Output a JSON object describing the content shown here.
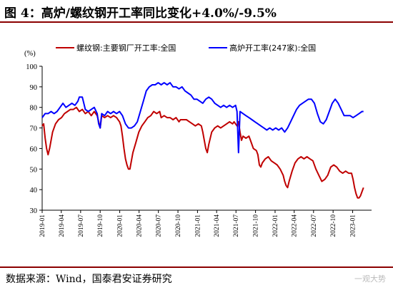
{
  "header": {
    "title": "图 4：高炉/螺纹钢开工率同比变化+4.0%/-9.5%"
  },
  "footer": {
    "source": "数据来源：Wind，国泰君安证券研究",
    "watermark": "一观大势"
  },
  "colors": {
    "red_series": "#c00000",
    "blue_series": "#0000ff",
    "rule": "#8b0000"
  },
  "chart_data": {
    "type": "line",
    "title": "图 4：高炉/螺纹钢开工率同比变化+4.0%/-9.5%",
    "ylabel": "(%)",
    "ylim": [
      30,
      100
    ],
    "yticks": [
      "30",
      "40",
      "50",
      "60",
      "70",
      "80",
      "90",
      "100"
    ],
    "xlim": [
      "2019-01-01",
      "2023-03-31"
    ],
    "xticks": [
      "2019-01",
      "2019-04",
      "2019-07",
      "2019-10",
      "2020-01",
      "2020-04",
      "2020-07",
      "2020-10",
      "2021-01",
      "2021-04",
      "2021-07",
      "2021-10",
      "2022-01",
      "2022-04",
      "2022-07",
      "2022-10",
      "2023-01"
    ],
    "legend_position": "top",
    "grid": false,
    "series": [
      {
        "name": "螺纹钢:主要钢厂开工率:全国",
        "color": "#c00000",
        "points": [
          [
            "2019-01-01",
            71
          ],
          [
            "2019-01-08",
            72
          ],
          [
            "2019-01-15",
            65
          ],
          [
            "2019-01-22",
            60
          ],
          [
            "2019-01-29",
            57
          ],
          [
            "2019-02-05",
            60
          ],
          [
            "2019-02-19",
            68
          ],
          [
            "2019-03-05",
            72
          ],
          [
            "2019-03-19",
            74
          ],
          [
            "2019-04-02",
            75
          ],
          [
            "2019-04-16",
            77
          ],
          [
            "2019-04-30",
            78
          ],
          [
            "2019-05-14",
            79
          ],
          [
            "2019-05-28",
            79
          ],
          [
            "2019-06-11",
            80
          ],
          [
            "2019-06-25",
            78
          ],
          [
            "2019-07-09",
            79
          ],
          [
            "2019-07-23",
            77
          ],
          [
            "2019-08-06",
            78
          ],
          [
            "2019-08-20",
            76
          ],
          [
            "2019-09-03",
            78
          ],
          [
            "2019-09-17",
            76
          ],
          [
            "2019-09-24",
            73
          ],
          [
            "2019-10-01",
            70
          ],
          [
            "2019-10-08",
            76
          ],
          [
            "2019-10-22",
            75
          ],
          [
            "2019-11-05",
            76
          ],
          [
            "2019-11-19",
            75
          ],
          [
            "2019-12-03",
            76
          ],
          [
            "2019-12-17",
            75
          ],
          [
            "2019-12-31",
            73
          ],
          [
            "2020-01-07",
            71
          ],
          [
            "2020-01-14",
            66
          ],
          [
            "2020-01-21",
            60
          ],
          [
            "2020-01-28",
            55
          ],
          [
            "2020-02-04",
            52
          ],
          [
            "2020-02-11",
            50
          ],
          [
            "2020-02-18",
            50
          ],
          [
            "2020-02-25",
            54
          ],
          [
            "2020-03-03",
            58
          ],
          [
            "2020-03-17",
            63
          ],
          [
            "2020-03-31",
            68
          ],
          [
            "2020-04-14",
            71
          ],
          [
            "2020-04-28",
            73
          ],
          [
            "2020-05-12",
            75
          ],
          [
            "2020-05-26",
            76
          ],
          [
            "2020-06-09",
            78
          ],
          [
            "2020-06-23",
            77
          ],
          [
            "2020-07-07",
            78
          ],
          [
            "2020-07-14",
            75
          ],
          [
            "2020-07-28",
            76
          ],
          [
            "2020-08-11",
            75
          ],
          [
            "2020-08-25",
            75
          ],
          [
            "2020-09-08",
            74
          ],
          [
            "2020-09-22",
            75
          ],
          [
            "2020-10-06",
            73
          ],
          [
            "2020-10-13",
            74
          ],
          [
            "2020-10-27",
            74
          ],
          [
            "2020-11-10",
            74
          ],
          [
            "2020-11-24",
            73
          ],
          [
            "2020-12-08",
            72
          ],
          [
            "2020-12-22",
            71
          ],
          [
            "2021-01-05",
            72
          ],
          [
            "2021-01-19",
            71
          ],
          [
            "2021-01-26",
            68
          ],
          [
            "2021-02-02",
            64
          ],
          [
            "2021-02-09",
            60
          ],
          [
            "2021-02-16",
            58
          ],
          [
            "2021-02-23",
            62
          ],
          [
            "2021-03-09",
            68
          ],
          [
            "2021-03-23",
            70
          ],
          [
            "2021-04-06",
            71
          ],
          [
            "2021-04-20",
            70
          ],
          [
            "2021-05-04",
            71
          ],
          [
            "2021-05-18",
            72
          ],
          [
            "2021-06-01",
            73
          ],
          [
            "2021-06-15",
            72
          ],
          [
            "2021-06-22",
            73
          ],
          [
            "2021-07-06",
            71
          ],
          [
            "2021-07-13",
            73
          ],
          [
            "2021-07-20",
            68
          ],
          [
            "2021-07-27",
            64
          ],
          [
            "2021-08-03",
            66
          ],
          [
            "2021-08-17",
            65
          ],
          [
            "2021-08-31",
            66
          ],
          [
            "2021-09-07",
            64
          ],
          [
            "2021-09-21",
            60
          ],
          [
            "2021-10-05",
            59
          ],
          [
            "2021-10-12",
            57
          ],
          [
            "2021-10-19",
            52
          ],
          [
            "2021-10-26",
            51
          ],
          [
            "2021-11-02",
            53
          ],
          [
            "2021-11-16",
            55
          ],
          [
            "2021-11-30",
            56
          ],
          [
            "2021-12-14",
            54
          ],
          [
            "2021-12-28",
            53
          ],
          [
            "2022-01-11",
            52
          ],
          [
            "2022-01-25",
            50
          ],
          [
            "2022-02-08",
            47
          ],
          [
            "2022-02-15",
            44
          ],
          [
            "2022-02-22",
            42
          ],
          [
            "2022-03-01",
            41
          ],
          [
            "2022-03-08",
            44
          ],
          [
            "2022-03-22",
            49
          ],
          [
            "2022-04-05",
            53
          ],
          [
            "2022-04-19",
            55
          ],
          [
            "2022-05-03",
            56
          ],
          [
            "2022-05-17",
            55
          ],
          [
            "2022-05-31",
            56
          ],
          [
            "2022-06-14",
            55
          ],
          [
            "2022-06-28",
            54
          ],
          [
            "2022-07-12",
            50
          ],
          [
            "2022-07-26",
            47
          ],
          [
            "2022-08-09",
            44
          ],
          [
            "2022-08-23",
            45
          ],
          [
            "2022-09-06",
            47
          ],
          [
            "2022-09-20",
            51
          ],
          [
            "2022-10-04",
            52
          ],
          [
            "2022-10-18",
            51
          ],
          [
            "2022-11-01",
            49
          ],
          [
            "2022-11-15",
            48
          ],
          [
            "2022-11-29",
            49
          ],
          [
            "2022-12-13",
            48
          ],
          [
            "2022-12-27",
            48
          ],
          [
            "2023-01-03",
            45
          ],
          [
            "2023-01-10",
            41
          ],
          [
            "2023-01-17",
            38
          ],
          [
            "2023-01-24",
            36
          ],
          [
            "2023-01-31",
            36
          ],
          [
            "2023-02-07",
            37
          ],
          [
            "2023-02-14",
            39
          ],
          [
            "2023-02-21",
            41
          ]
        ]
      },
      {
        "name": "高炉开工率(247家):全国",
        "color": "#0000ff",
        "points": [
          [
            "2019-01-01",
            75
          ],
          [
            "2019-01-15",
            77
          ],
          [
            "2019-01-29",
            77
          ],
          [
            "2019-02-12",
            78
          ],
          [
            "2019-02-26",
            77
          ],
          [
            "2019-03-12",
            78
          ],
          [
            "2019-03-26",
            80
          ],
          [
            "2019-04-09",
            82
          ],
          [
            "2019-04-23",
            80
          ],
          [
            "2019-05-07",
            81
          ],
          [
            "2019-05-21",
            82
          ],
          [
            "2019-06-04",
            81
          ],
          [
            "2019-06-18",
            83
          ],
          [
            "2019-06-25",
            85
          ],
          [
            "2019-07-09",
            85
          ],
          [
            "2019-07-16",
            82
          ],
          [
            "2019-07-23",
            79
          ],
          [
            "2019-08-06",
            78
          ],
          [
            "2019-08-20",
            79
          ],
          [
            "2019-09-03",
            80
          ],
          [
            "2019-09-17",
            77
          ],
          [
            "2019-09-24",
            72
          ],
          [
            "2019-10-01",
            70
          ],
          [
            "2019-10-08",
            77
          ],
          [
            "2019-10-22",
            76
          ],
          [
            "2019-11-05",
            78
          ],
          [
            "2019-11-19",
            77
          ],
          [
            "2019-12-03",
            78
          ],
          [
            "2019-12-17",
            77
          ],
          [
            "2019-12-31",
            78
          ],
          [
            "2020-01-14",
            76
          ],
          [
            "2020-01-28",
            72
          ],
          [
            "2020-02-11",
            70
          ],
          [
            "2020-02-25",
            70
          ],
          [
            "2020-03-10",
            71
          ],
          [
            "2020-03-24",
            73
          ],
          [
            "2020-04-07",
            78
          ],
          [
            "2020-04-21",
            83
          ],
          [
            "2020-05-05",
            88
          ],
          [
            "2020-05-19",
            90
          ],
          [
            "2020-06-02",
            91
          ],
          [
            "2020-06-16",
            91
          ],
          [
            "2020-06-30",
            92
          ],
          [
            "2020-07-14",
            91
          ],
          [
            "2020-07-28",
            92
          ],
          [
            "2020-08-11",
            91
          ],
          [
            "2020-08-25",
            92
          ],
          [
            "2020-09-08",
            90
          ],
          [
            "2020-09-22",
            90
          ],
          [
            "2020-10-06",
            89
          ],
          [
            "2020-10-20",
            90
          ],
          [
            "2020-11-03",
            88
          ],
          [
            "2020-11-17",
            87
          ],
          [
            "2020-12-01",
            86
          ],
          [
            "2020-12-15",
            84
          ],
          [
            "2020-12-29",
            84
          ],
          [
            "2021-01-12",
            83
          ],
          [
            "2021-01-26",
            82
          ],
          [
            "2021-02-09",
            84
          ],
          [
            "2021-02-23",
            85
          ],
          [
            "2021-03-09",
            84
          ],
          [
            "2021-03-23",
            82
          ],
          [
            "2021-04-06",
            81
          ],
          [
            "2021-04-20",
            80
          ],
          [
            "2021-05-04",
            81
          ],
          [
            "2021-05-18",
            80
          ],
          [
            "2021-06-01",
            81
          ],
          [
            "2021-06-15",
            80
          ],
          [
            "2021-06-29",
            81
          ],
          [
            "2021-07-06",
            78
          ],
          [
            "2021-07-13",
            58
          ],
          [
            "2021-07-20",
            78
          ],
          [
            "2021-08-03",
            77
          ],
          [
            "2021-08-17",
            76
          ],
          [
            "2021-08-31",
            75
          ],
          [
            "2021-09-14",
            74
          ],
          [
            "2021-09-28",
            73
          ],
          [
            "2021-10-12",
            72
          ],
          [
            "2021-10-26",
            71
          ],
          [
            "2021-11-09",
            70
          ],
          [
            "2021-11-23",
            69
          ],
          [
            "2021-12-07",
            70
          ],
          [
            "2021-12-21",
            69
          ],
          [
            "2022-01-04",
            70
          ],
          [
            "2022-01-18",
            69
          ],
          [
            "2022-02-01",
            70
          ],
          [
            "2022-02-15",
            68
          ],
          [
            "2022-03-01",
            70
          ],
          [
            "2022-03-15",
            73
          ],
          [
            "2022-03-29",
            76
          ],
          [
            "2022-04-12",
            79
          ],
          [
            "2022-04-26",
            81
          ],
          [
            "2022-05-10",
            82
          ],
          [
            "2022-05-24",
            83
          ],
          [
            "2022-06-07",
            84
          ],
          [
            "2022-06-21",
            84
          ],
          [
            "2022-07-05",
            82
          ],
          [
            "2022-07-19",
            77
          ],
          [
            "2022-08-02",
            73
          ],
          [
            "2022-08-16",
            72
          ],
          [
            "2022-08-30",
            74
          ],
          [
            "2022-09-13",
            78
          ],
          [
            "2022-09-27",
            82
          ],
          [
            "2022-10-11",
            84
          ],
          [
            "2022-10-25",
            82
          ],
          [
            "2022-11-08",
            79
          ],
          [
            "2022-11-22",
            76
          ],
          [
            "2022-12-06",
            76
          ],
          [
            "2022-12-20",
            76
          ],
          [
            "2023-01-03",
            75
          ],
          [
            "2023-01-17",
            76
          ],
          [
            "2023-01-31",
            77
          ],
          [
            "2023-02-14",
            78
          ],
          [
            "2023-02-21",
            78
          ]
        ]
      }
    ]
  }
}
